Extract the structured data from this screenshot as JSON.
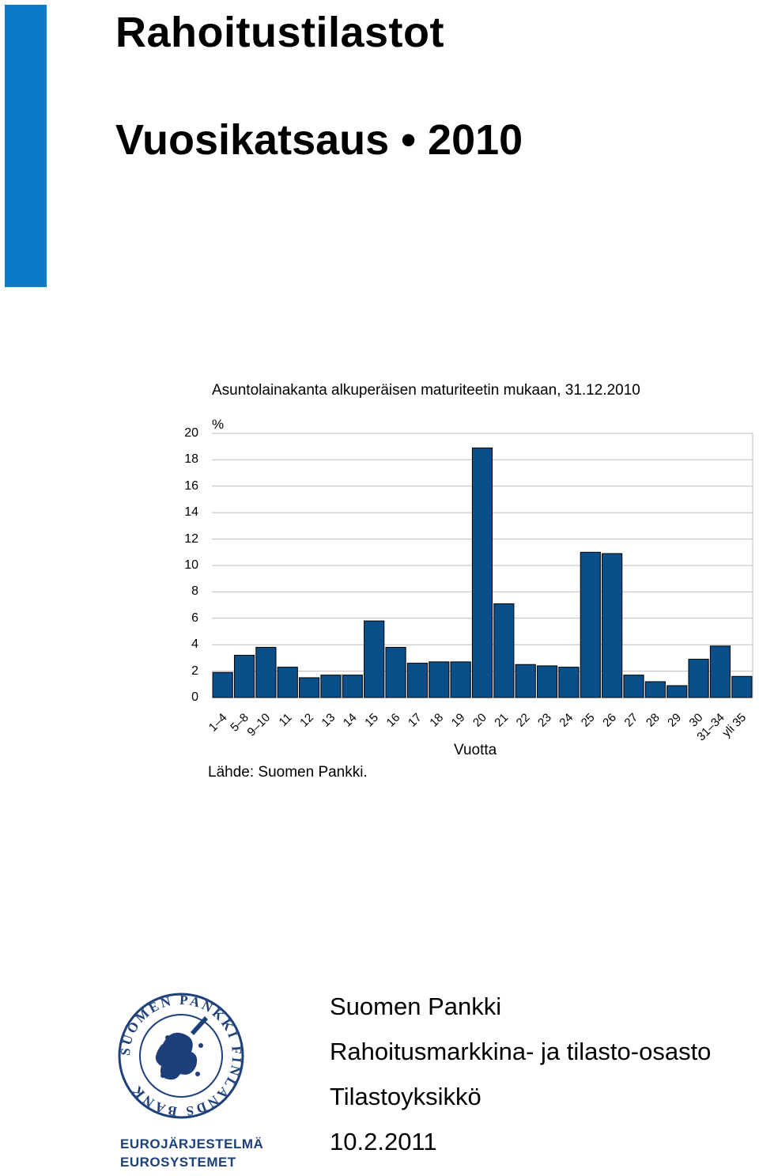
{
  "header": {
    "title": "Rahoitustilastot",
    "subtitle": "Vuosikatsaus • 2010",
    "accent_color": "#0a7bc9"
  },
  "chart_data": {
    "type": "bar",
    "title": "Asuntolainakanta alkuperäisen maturiteetin mukaan, 31.12.2010",
    "ylabel": "%",
    "xlabel": "Vuotta",
    "ylim": [
      0,
      20
    ],
    "yticks": [
      "20",
      "18",
      "16",
      "14",
      "12",
      "10",
      "8",
      "6",
      "4",
      "2",
      "0"
    ],
    "grid": true,
    "bar_color": "#0a4f8a",
    "categories": [
      "1–4",
      "5–8",
      "9–10",
      "11",
      "12",
      "13",
      "14",
      "15",
      "16",
      "17",
      "18",
      "19",
      "20",
      "21",
      "22",
      "23",
      "24",
      "25",
      "26",
      "27",
      "28",
      "29",
      "30",
      "31–34",
      "yli 35"
    ],
    "values": [
      1.9,
      3.2,
      3.8,
      2.3,
      1.5,
      1.7,
      1.7,
      5.8,
      3.8,
      2.6,
      2.7,
      2.7,
      18.9,
      7.1,
      2.5,
      2.4,
      2.3,
      11.0,
      10.9,
      1.7,
      1.2,
      0.9,
      2.9,
      3.9,
      1.6
    ]
  },
  "source": "Lähde: Suomen Pankki.",
  "logo": {
    "name": "suomen-pankki-seal",
    "seal_text": "SUOMEN PANKKI FINLANDS BANK",
    "line1": "EUROJÄRJESTELMÄ",
    "line2": "EUROSYSTEMET"
  },
  "footer": {
    "org": "Suomen Pankki",
    "department": "Rahoitusmarkkina- ja tilasto-osasto",
    "unit": "Tilastoyksikkö",
    "date": "10.2.2011"
  }
}
